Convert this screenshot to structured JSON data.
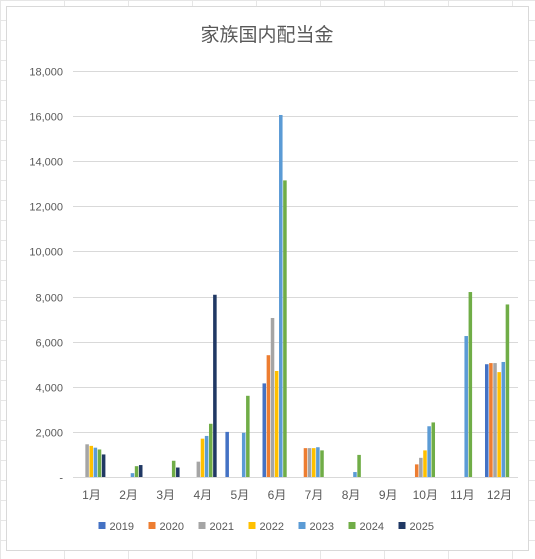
{
  "chart_data": {
    "type": "bar",
    "title": "家族国内配当金",
    "xlabel": "",
    "ylabel": "",
    "categories": [
      "1月",
      "2月",
      "3月",
      "4月",
      "5月",
      "6月",
      "7月",
      "8月",
      "9月",
      "10月",
      "11月",
      "12月"
    ],
    "ylim": [
      0,
      18000
    ],
    "yticks": [
      0,
      2000,
      4000,
      6000,
      8000,
      10000,
      12000,
      14000,
      16000,
      18000
    ],
    "ytick_labels": [
      "-",
      "2,000",
      "4,000",
      "6,000",
      "8,000",
      "10,000",
      "12,000",
      "14,000",
      "16,000",
      "18,000"
    ],
    "grid": true,
    "legend_position": "bottom",
    "series": [
      {
        "name": "2019",
        "color": "#4472c4",
        "values": [
          0,
          0,
          0,
          0,
          2000,
          4150,
          0,
          0,
          0,
          0,
          0,
          5000
        ]
      },
      {
        "name": "2020",
        "color": "#ed7d31",
        "values": [
          0,
          0,
          0,
          0,
          0,
          5400,
          1280,
          0,
          0,
          560,
          0,
          5050
        ]
      },
      {
        "name": "2021",
        "color": "#a5a5a5",
        "values": [
          1450,
          0,
          0,
          680,
          0,
          7050,
          1280,
          0,
          0,
          850,
          0,
          5050
        ]
      },
      {
        "name": "2022",
        "color": "#ffc000",
        "values": [
          1380,
          0,
          0,
          1700,
          0,
          4700,
          1280,
          0,
          0,
          1180,
          0,
          4650
        ]
      },
      {
        "name": "2023",
        "color": "#5b9bd5",
        "values": [
          1300,
          170,
          0,
          1820,
          1960,
          16050,
          1320,
          220,
          0,
          2250,
          6250,
          5100
        ]
      },
      {
        "name": "2024",
        "color": "#70ad47",
        "values": [
          1220,
          480,
          720,
          2360,
          3600,
          13150,
          1180,
          980,
          0,
          2420,
          8200,
          7650
        ]
      },
      {
        "name": "2025",
        "color": "#203864",
        "values": [
          1000,
          530,
          420,
          8080,
          0,
          0,
          0,
          0,
          0,
          0,
          0,
          0
        ]
      }
    ]
  }
}
